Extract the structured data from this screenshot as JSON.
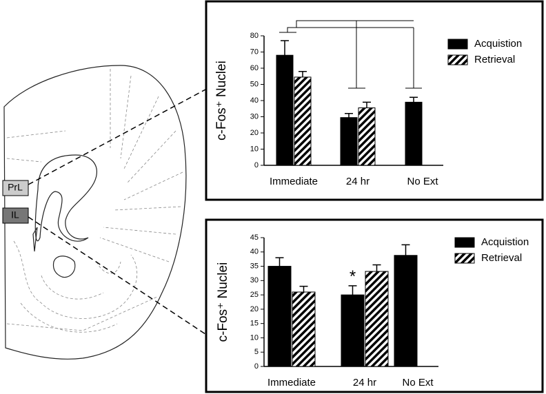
{
  "diagram": {
    "labels": [
      "PrL",
      "IL"
    ]
  },
  "chart_data": [
    {
      "type": "bar",
      "ylabel": "c-Fos⁺ Nuclei",
      "categories": [
        "Immediate",
        "24 hr",
        "No Ext"
      ],
      "series": [
        {
          "name": "Acquistion",
          "color": "#000000",
          "values": [
            68,
            29.5,
            39
          ],
          "errors": [
            9,
            2.5,
            3
          ]
        },
        {
          "name": "Retrieval",
          "color": "#000000",
          "hatch": true,
          "values": [
            54.5,
            35.5,
            null
          ],
          "errors": [
            3.5,
            3.5,
            null
          ]
        }
      ],
      "ylim": [
        0,
        80
      ],
      "yticks": [
        0,
        10,
        20,
        30,
        40,
        50,
        60,
        70,
        80
      ],
      "grid": false
    },
    {
      "type": "bar",
      "ylabel": "c-Fos⁺ Nuclei",
      "categories": [
        "Immediate",
        "24 hr",
        "No Ext"
      ],
      "series": [
        {
          "name": "Acquistion",
          "color": "#000000",
          "values": [
            35,
            25,
            38.8
          ],
          "errors": [
            3,
            3.2,
            3.7
          ]
        },
        {
          "name": "Retrieval",
          "color": "#000000",
          "hatch": true,
          "values": [
            26,
            33.2,
            null
          ],
          "errors": [
            2,
            2.3,
            null
          ]
        }
      ],
      "annotations": [
        "*"
      ],
      "ylim": [
        0,
        45
      ],
      "yticks": [
        0,
        5,
        10,
        15,
        20,
        25,
        30,
        35,
        40,
        45
      ],
      "grid": false
    }
  ]
}
